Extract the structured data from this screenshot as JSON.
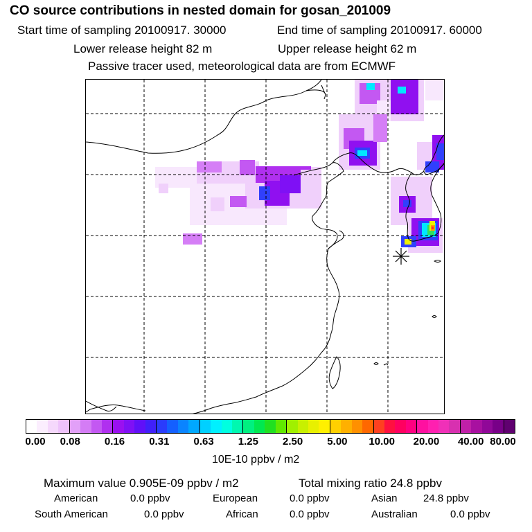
{
  "header": {
    "title": "CO  source contributions in nested domain for gosan_201009",
    "start_time": "Start time of sampling 20100917. 30000",
    "end_time": "End time of sampling 20100917. 60000",
    "lower_release": "Lower release height   82 m",
    "upper_release": "Upper release height   62 m",
    "tracer_note": "Passive tracer used, meteorological data are from ECMWF"
  },
  "colorbar": {
    "ticks": [
      "0.00",
      "0.08",
      "0.16",
      "0.31",
      "0.63",
      "1.25",
      "2.50",
      "5.00",
      "10.00",
      "20.00",
      "40.00",
      "80.00"
    ],
    "unit_label": "10E-10 ppbv / m2",
    "colors": [
      "#ffffff",
      "#fbeefe",
      "#f5d8fc",
      "#eec2fb",
      "#e2a0f8",
      "#d47cf5",
      "#c358f2",
      "#b030ef",
      "#9a10f0",
      "#7f10f5",
      "#6010f8",
      "#4020fa",
      "#2a3cfc",
      "#1460ff",
      "#0a84ff",
      "#00a8ff",
      "#00d0ff",
      "#00f0ff",
      "#00ffe0",
      "#00f8b0",
      "#00f080",
      "#00e850",
      "#20e020",
      "#60e800",
      "#a0f000",
      "#c8f000",
      "#e8f000",
      "#fff000",
      "#ffd000",
      "#ffb000",
      "#ff9000",
      "#ff6800",
      "#ff4020",
      "#ff1040",
      "#ff0060",
      "#ff0080",
      "#ff10a0",
      "#ff20b0",
      "#f030b8",
      "#d830b0",
      "#c020a8",
      "#a810a0",
      "#900898",
      "#780088",
      "#600070"
    ]
  },
  "map": {
    "receptor_marker": "asterisk",
    "plume_colors": {
      "light": "#f0d0fb",
      "lighter": "#f8e8fd",
      "medium": "#d57ef6",
      "violet": "#a020f0",
      "purple": "#9010f0",
      "blue": "#3040fc",
      "cyan": "#00e8ff",
      "green": "#30e060",
      "yellow": "#f0f000",
      "orange": "#ffa000",
      "red": "#ff3030"
    }
  },
  "footer": {
    "maximum_value": "Maximum value  0.905E-09 ppbv / m2",
    "total_mixing": "Total mixing ratio       24.8 ppbv",
    "regions": [
      {
        "name": "American",
        "value": "0.0 ppbv"
      },
      {
        "name": "European",
        "value": "0.0 ppbv"
      },
      {
        "name": "Asian",
        "value": "24.8 ppbv"
      },
      {
        "name": "South American",
        "value": "0.0 ppbv"
      },
      {
        "name": "African",
        "value": "0.0 ppbv"
      },
      {
        "name": "Australian",
        "value": "0.0 ppbv"
      }
    ]
  }
}
